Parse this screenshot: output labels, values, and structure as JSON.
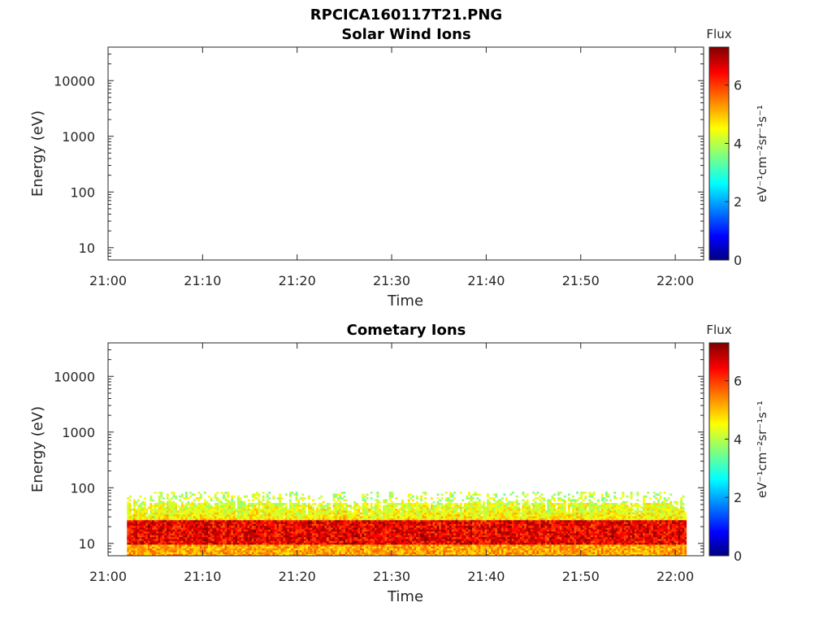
{
  "figure_title": "RPCICA160117T21.PNG",
  "colorbar": {
    "label_top": "Flux",
    "units": "eV⁻¹cm⁻²sr⁻¹s⁻¹",
    "ticks": [
      "0",
      "2",
      "4",
      "6"
    ],
    "range": [
      0,
      7.3
    ],
    "colormap": "jet"
  },
  "chart_data": [
    {
      "type": "heatmap",
      "title": "Solar Wind Ions",
      "xlabel": "Time",
      "ylabel": "Energy (eV)",
      "x_tick_labels": [
        "21:00",
        "21:10",
        "21:20",
        "21:30",
        "21:40",
        "21:50",
        "22:00"
      ],
      "xlim": [
        "21:00",
        "22:03"
      ],
      "y_tick_labels": [
        "10",
        "100",
        "1000",
        "10000"
      ],
      "y_scale": "log",
      "ylim": [
        6,
        40000
      ],
      "data_present": false
    },
    {
      "type": "heatmap",
      "title": "Cometary Ions",
      "xlabel": "Time",
      "ylabel": "Energy (eV)",
      "x_tick_labels": [
        "21:00",
        "21:10",
        "21:20",
        "21:30",
        "21:40",
        "21:50",
        "22:00"
      ],
      "xlim": [
        "21:00",
        "22:03"
      ],
      "y_tick_labels": [
        "10",
        "100",
        "1000",
        "10000"
      ],
      "y_scale": "log",
      "ylim": [
        6,
        40000
      ],
      "data_present": true,
      "data_time_range": [
        "21:02",
        "22:01"
      ],
      "data_energy_range_eV": [
        6,
        85
      ],
      "peak_flux_energy_eV": [
        9,
        25
      ],
      "typical_flux_core": 6.5,
      "typical_flux_fringe": 4
    }
  ]
}
